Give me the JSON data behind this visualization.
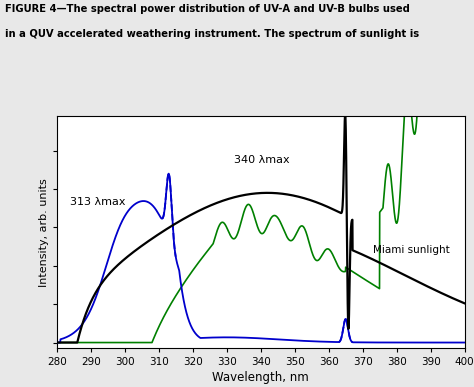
{
  "title_line1": "FIGURE 4—The spectral power distribution of UV-A and UV-B bulbs used",
  "title_line2": "in a QUV accelerated weathering instrument. The spectrum of sunlight is",
  "xlabel": "Wavelength, nm",
  "ylabel": "Intensity, arb. units",
  "xlim": [
    280,
    400
  ],
  "xticks": [
    280,
    290,
    300,
    310,
    320,
    330,
    340,
    350,
    360,
    370,
    380,
    390,
    400
  ],
  "bg_color": "#e8e8e8",
  "plot_bg": "#ffffff",
  "label_313": "313 λmax",
  "label_340": "340 λmax",
  "label_miami": "Miami sunlight",
  "blue_color": "#0000cc",
  "green_color": "#008000",
  "black_color": "#000000"
}
